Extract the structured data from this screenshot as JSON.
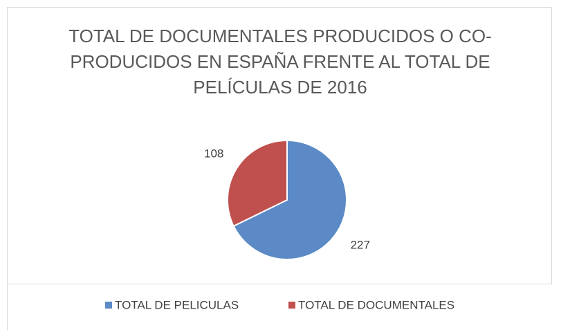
{
  "chart_data": {
    "type": "pie",
    "title": "TOTAL DE DOCUMENTALES PRODUCIDOS O CO-PRODUCIDOS EN ESPAÑA FRENTE AL TOTAL DE PELÍCULAS DE 2016",
    "categories": [
      "TOTAL DE PELICULAS",
      "TOTAL DE DOCUMENTALES"
    ],
    "values": [
      227,
      108
    ],
    "colors": [
      "#5b8ac6",
      "#c0504d"
    ],
    "legend": "bottom"
  }
}
